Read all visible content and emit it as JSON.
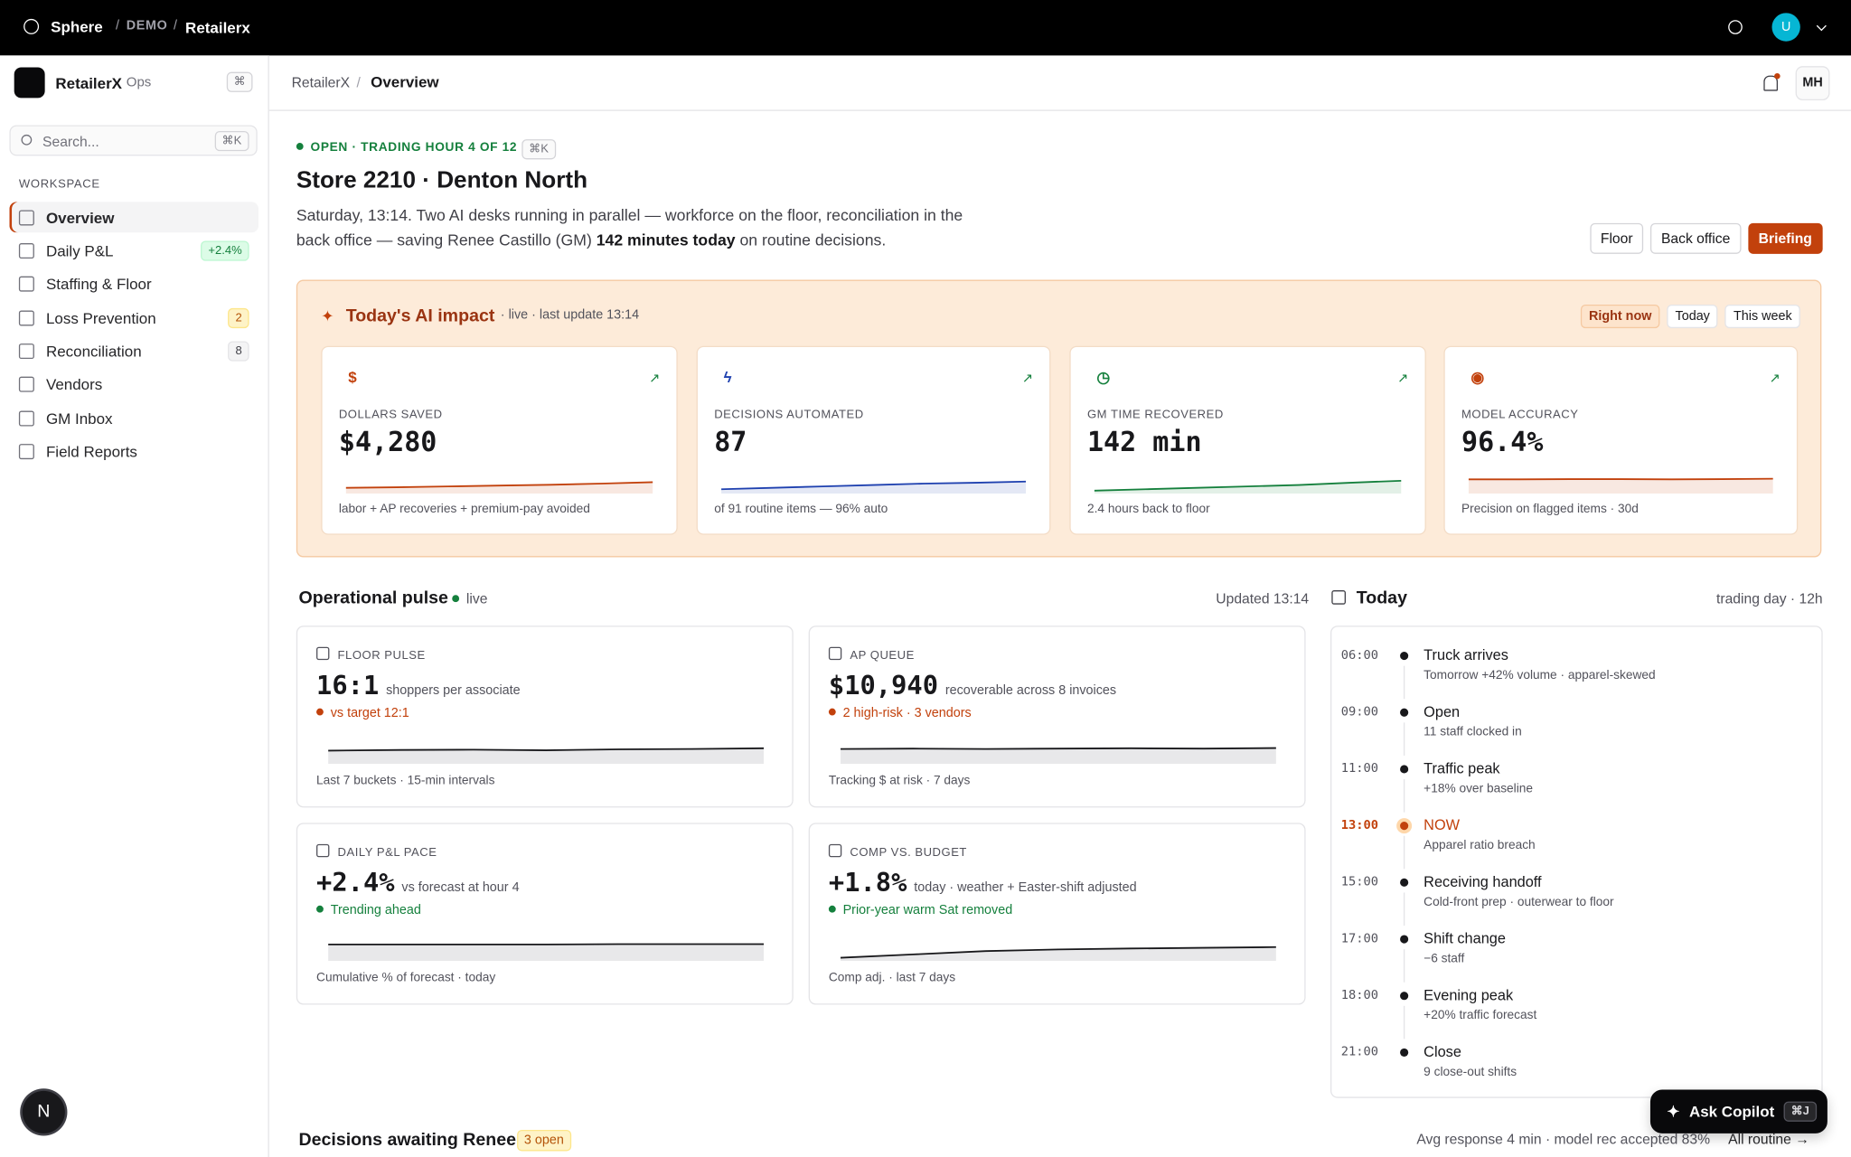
{
  "topbar": {
    "brand": "Sphere",
    "crumbs": [
      "DEMO",
      "Retailerx"
    ],
    "avatar": "U"
  },
  "sidebar": {
    "org": "RetailerX",
    "org_tag": "Ops",
    "org_key": "⌘",
    "search": "Search...",
    "search_key": "⌘K",
    "section": "WORKSPACE",
    "items": [
      {
        "label": "Overview",
        "active": true
      },
      {
        "label": "Daily P&L",
        "badge": "+2.4%",
        "badge_tone": "green"
      },
      {
        "label": "Staffing & Floor"
      },
      {
        "label": "Loss Prevention",
        "badge": "2",
        "badge_tone": "amber"
      },
      {
        "label": "Reconciliation",
        "badge": "8",
        "badge_tone": "gray"
      },
      {
        "label": "Vendors"
      },
      {
        "label": "GM Inbox"
      },
      {
        "label": "Field Reports"
      }
    ],
    "help": "N"
  },
  "header": {
    "crumbs": [
      "RetailerX",
      "Overview"
    ],
    "user": "MH"
  },
  "hero": {
    "status": "OPEN · TRADING HOUR 4 OF 12",
    "status_key": "⌘K",
    "title": "Store 2210 · Denton North",
    "desc_before": "Saturday, 13:14. Two AI desks running in parallel — workforce on the floor, reconciliation in the back office — saving Renee Castillo (GM) ",
    "desc_bold": "142 minutes today",
    "desc_after": " on routine decisions.",
    "buttons": [
      "Floor",
      "Back office",
      "Briefing"
    ]
  },
  "impact": {
    "title": "Today's AI impact",
    "meta": "· live · last update 13:14",
    "tabs": [
      "Right now",
      "Today",
      "This week"
    ],
    "kpis": [
      {
        "icon": "$",
        "label": "DOLLARS SAVED",
        "value": "$4,280",
        "note": "labor + AP recoveries + premium-pay avoided",
        "color": "#c2410c",
        "trend": [
          20,
          22,
          25,
          28,
          31,
          35,
          40
        ],
        "ylim": [
          0,
          100
        ]
      },
      {
        "icon": "ϟ",
        "label": "DECISIONS AUTOMATED",
        "value": "87",
        "note": "of 91 routine items — 96% auto",
        "color": "#1e40af",
        "trend": [
          15,
          20,
          25,
          30,
          35,
          38,
          42
        ],
        "ylim": [
          0,
          100
        ]
      },
      {
        "icon": "◷",
        "label": "GM TIME RECOVERED",
        "value": "142 min",
        "note": "2.4 hours back to floor",
        "color": "#15803d",
        "trend": [
          10,
          15,
          20,
          25,
          30,
          38,
          45
        ],
        "ylim": [
          0,
          100
        ]
      },
      {
        "icon": "◉",
        "label": "MODEL ACCURACY",
        "value": "96.4%",
        "note": "Precision on flagged items · 30d",
        "color": "#c2410c",
        "trend": [
          50,
          50,
          51,
          51,
          50,
          51,
          52
        ],
        "ylim": [
          0,
          100
        ]
      }
    ]
  },
  "pulse": {
    "title": "Operational pulse",
    "live": "live",
    "updated": "Updated 13:14",
    "cards": [
      {
        "label": "FLOOR PULSE",
        "value": "16:1",
        "unit": "shoppers per associate",
        "status": "vs target 12:1",
        "status_color": "#c2410c",
        "note": "Last 7 buckets · 15-min intervals",
        "trend": [
          40,
          42,
          43,
          41,
          44,
          45,
          47
        ],
        "ylim": [
          0,
          100
        ]
      },
      {
        "label": "AP QUEUE",
        "value": "$10,940",
        "unit": "recoverable across 8 invoices",
        "status": "2 high-risk · 3 vendors",
        "status_color": "#c2410c",
        "note": "Tracking $ at risk · 7 days",
        "trend": [
          45,
          46,
          45,
          46,
          47,
          46,
          48
        ],
        "ylim": [
          0,
          100
        ]
      },
      {
        "label": "DAILY P&L PACE",
        "value": "+2.4%",
        "unit": "vs forecast at hour 4",
        "status": "Trending ahead",
        "status_color": "#15803d",
        "note": "Cumulative % of forecast · today",
        "trend": [
          50,
          50,
          50,
          50,
          51,
          51,
          51
        ],
        "ylim": [
          0,
          100
        ]
      },
      {
        "label": "COMP VS. BUDGET",
        "value": "+1.8%",
        "unit": "today · weather + Easter-shift adjusted",
        "status": "Prior-year warm Sat removed",
        "status_color": "#15803d",
        "note": "Comp adj. · last 7 days",
        "trend": [
          10,
          20,
          30,
          35,
          38,
          40,
          42
        ],
        "ylim": [
          0,
          100
        ]
      }
    ]
  },
  "today": {
    "title": "Today",
    "meta": "trading day · 12h",
    "events": [
      {
        "time": "06:00",
        "title": "Truck arrives",
        "sub": "Tomorrow +42% volume · apparel-skewed"
      },
      {
        "time": "09:00",
        "title": "Open",
        "sub": "11 staff clocked in"
      },
      {
        "time": "11:00",
        "title": "Traffic peak",
        "sub": "+18% over baseline"
      },
      {
        "time": "13:00",
        "title": "NOW",
        "sub": "Apparel ratio breach",
        "now": true
      },
      {
        "time": "15:00",
        "title": "Receiving handoff",
        "sub": "Cold-front prep · outerwear to floor"
      },
      {
        "time": "17:00",
        "title": "Shift change",
        "sub": "−6 staff"
      },
      {
        "time": "18:00",
        "title": "Evening peak",
        "sub": "+20% traffic forecast"
      },
      {
        "time": "21:00",
        "title": "Close",
        "sub": "9 close-out shifts"
      }
    ]
  },
  "decisions": {
    "title": "Decisions awaiting Renee",
    "badge": "3 open",
    "meta": "Avg response 4 min · model rec accepted 83%",
    "link": "All routine →"
  },
  "copilot": {
    "label": "Ask Copilot",
    "key": "⌘J"
  }
}
